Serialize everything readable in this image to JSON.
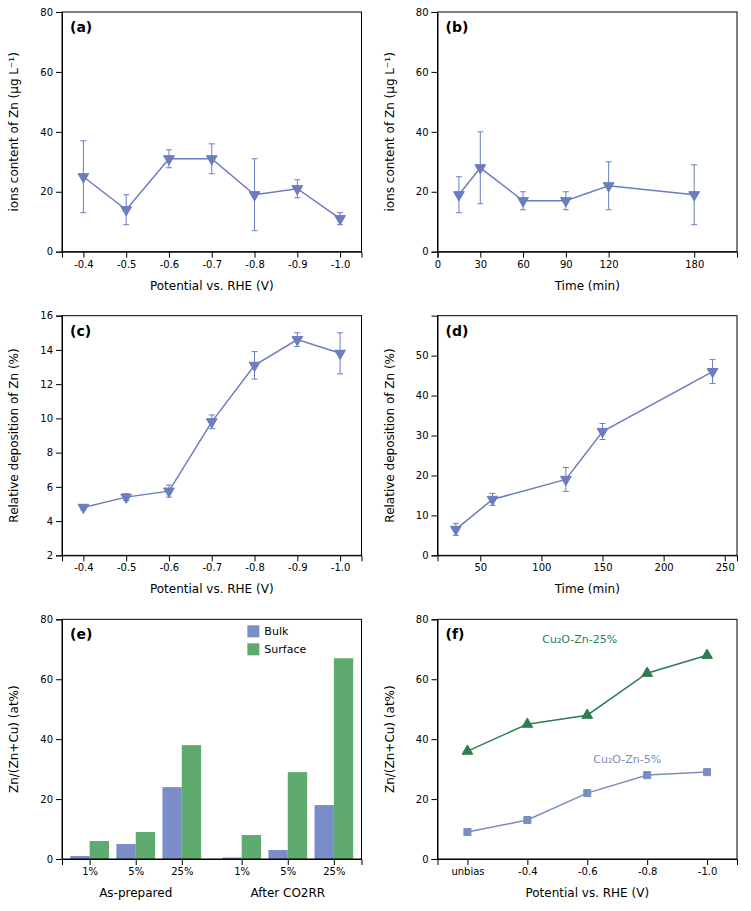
{
  "chart_data": [
    {
      "type": "line",
      "x": [
        -0.4,
        -0.5,
        -0.6,
        -0.7,
        -0.8,
        -0.9,
        -1.0
      ],
      "values": [
        25,
        14,
        31,
        31,
        19,
        21,
        11
      ],
      "errors": [
        12,
        5,
        3,
        5,
        12,
        3,
        2
      ],
      "color": "#6B7DBF",
      "marker": "triangle-down",
      "x_label": "Potential vs. RHE (V)",
      "y_label": "ions content of Zn (μg L⁻¹)",
      "xlim": [
        -0.35,
        -1.05
      ],
      "xticks": [
        -0.4,
        -0.5,
        -0.6,
        -0.7,
        -0.8,
        -0.9,
        {
          "value": -1.0,
          "label": "-1.0"
        }
      ],
      "ylim": [
        0,
        80
      ],
      "yticks": [
        0,
        20,
        40,
        60,
        80
      ],
      "annotations": [
        "(a)"
      ],
      "grid": false
    },
    {
      "type": "line",
      "x": [
        15,
        30,
        60,
        90,
        120,
        180
      ],
      "values": [
        19,
        28,
        17,
        17,
        22,
        19
      ],
      "errors": [
        6,
        12,
        3,
        3,
        8,
        10
      ],
      "color": "#6B7DBF",
      "marker": "triangle-down",
      "x_label": "Time (min)",
      "y_label": "ions content of Zn (μg L⁻¹)",
      "xlim": [
        0,
        210
      ],
      "xticks": [
        0,
        30,
        60,
        90,
        120,
        180
      ],
      "ylim": [
        0,
        80
      ],
      "yticks": [
        0,
        20,
        40,
        60,
        80
      ],
      "annotations": [
        "(b)"
      ],
      "grid": false
    },
    {
      "type": "line",
      "x": [
        -0.4,
        -0.5,
        -0.6,
        -0.7,
        -0.8,
        -0.9,
        -1.0
      ],
      "values": [
        4.8,
        5.4,
        5.75,
        9.8,
        13.1,
        14.6,
        13.8
      ],
      "errors": [
        0.15,
        0.2,
        0.35,
        0.4,
        0.8,
        0.4,
        1.2
      ],
      "color": "#6B7DBF",
      "marker": "triangle-down",
      "x_label": "Potential vs. RHE (V)",
      "y_label": "Relative deposition of Zn (%)",
      "xlim": [
        -0.35,
        -1.05
      ],
      "xticks": [
        -0.4,
        -0.5,
        -0.6,
        -0.7,
        -0.8,
        -0.9,
        {
          "value": -1.0,
          "label": "-1.0"
        }
      ],
      "ylim": [
        2,
        16
      ],
      "yticks": [
        2,
        4,
        6,
        8,
        10,
        12,
        14,
        16
      ],
      "annotations": [
        "(c)"
      ],
      "grid": false
    },
    {
      "type": "line",
      "x": [
        30,
        60,
        120,
        150,
        240
      ],
      "values": [
        6.5,
        14,
        19,
        31,
        46
      ],
      "errors": [
        1.5,
        1.5,
        3,
        2,
        3
      ],
      "color": "#6B7DBF",
      "marker": "triangle-down",
      "x_label": "Time (min)",
      "y_label": "Relative deposition of Zn (%)",
      "xlim": [
        15,
        260
      ],
      "xticks": [
        50,
        100,
        150,
        200,
        250
      ],
      "ylim": [
        0,
        60
      ],
      "yticks": [
        0,
        10,
        20,
        30,
        40,
        50
      ],
      "annotations": [
        "(d)"
      ],
      "grid": false
    },
    {
      "type": "bar",
      "categories": [
        "1%",
        "5%",
        "25%",
        "1%",
        "5%",
        "25%"
      ],
      "x_group_labels": [
        "As-prepared",
        "After CO2RR"
      ],
      "series": [
        {
          "name": "Bulk",
          "color": "#7B8DC8",
          "values": [
            1,
            5,
            24,
            0.5,
            3,
            18
          ]
        },
        {
          "name": "Surface",
          "color": "#5FAA6F",
          "values": [
            6,
            9,
            38,
            8,
            29,
            67
          ]
        }
      ],
      "y_label": "Zn/(Zn+Cu) (at%)",
      "ylim": [
        0,
        80
      ],
      "yticks": [
        0,
        20,
        40,
        60,
        80
      ],
      "legend": "upper right",
      "annotations": [
        "(e)"
      ],
      "grid": false
    },
    {
      "type": "line",
      "categories": [
        "unbias",
        "-0.4",
        "-0.6",
        "-0.8",
        "-1.0"
      ],
      "series": [
        {
          "name": "Cu₂O-Zn-25%",
          "color": "#2E7D4F",
          "marker": "triangle-up",
          "values": [
            36,
            45,
            48,
            62,
            68
          ]
        },
        {
          "name": "Cu₂O-Zn-5%",
          "color": "#7B8DC0",
          "marker": "square",
          "values": [
            9,
            13,
            22,
            28,
            29
          ]
        }
      ],
      "x_label": "Potential vs. RHE (V)",
      "y_label": "Zn/(Zn+Cu) (at%)",
      "ylim": [
        0,
        80
      ],
      "yticks": [
        0,
        20,
        40,
        60,
        80
      ],
      "annotations": [
        "(f)"
      ],
      "grid": false
    }
  ]
}
